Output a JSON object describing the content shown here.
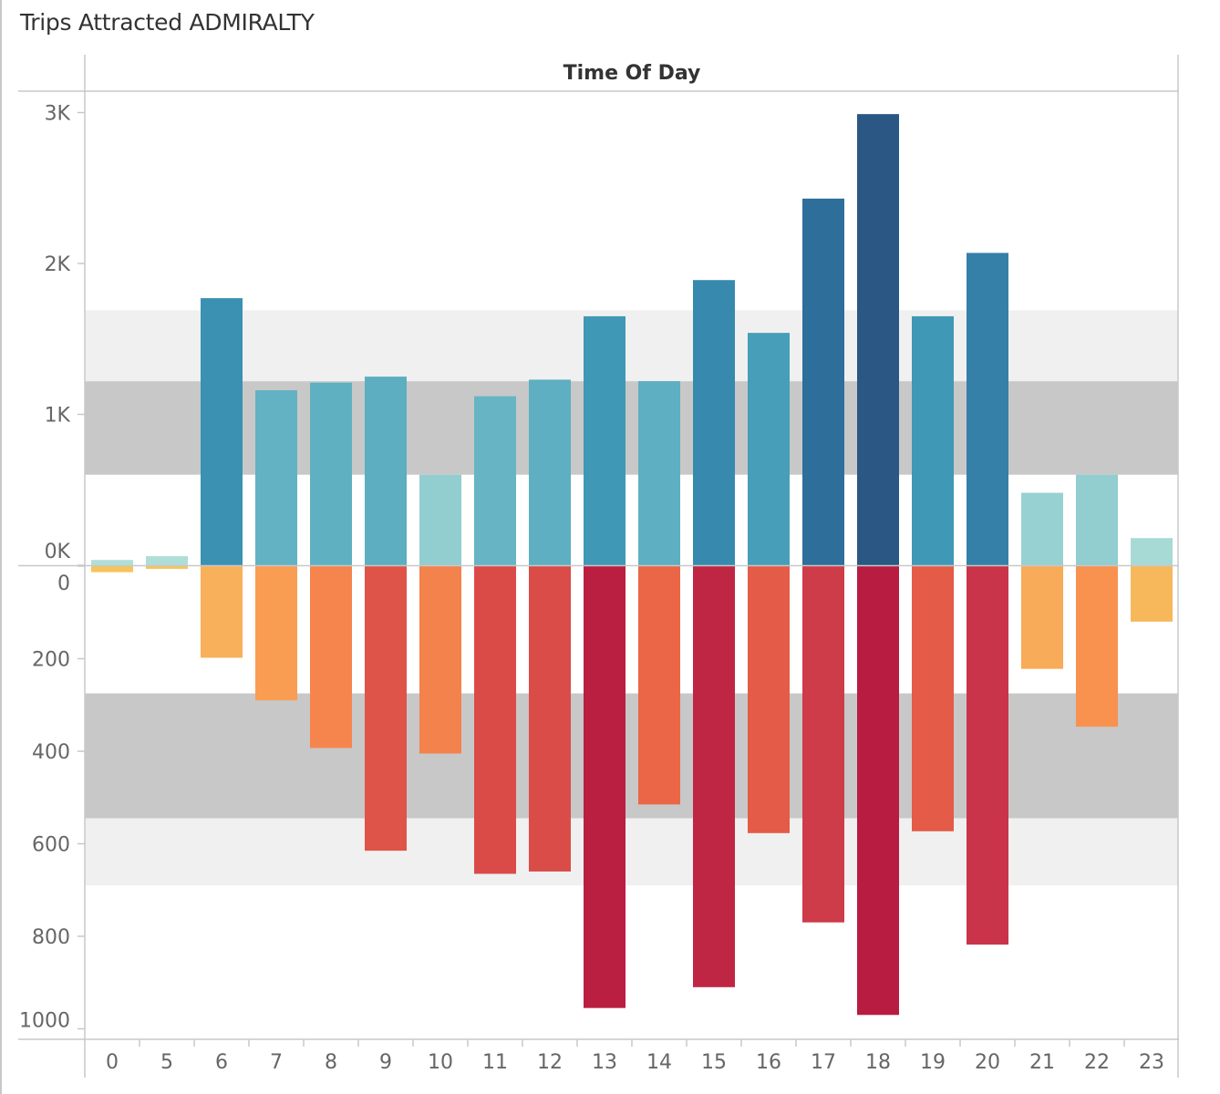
{
  "title": "Trips Attracted ADMIRALTY",
  "header": "Time Of Day",
  "chart_data": [
    {
      "type": "bar",
      "panel": "top",
      "categories": [
        "0",
        "5",
        "6",
        "7",
        "8",
        "9",
        "10",
        "11",
        "12",
        "13",
        "14",
        "15",
        "16",
        "17",
        "18",
        "19",
        "20",
        "21",
        "22",
        "23"
      ],
      "series": [
        {
          "values": [
            35,
            60,
            1770,
            1160,
            1210,
            1250,
            600,
            1120,
            1230,
            1650,
            1220,
            1890,
            1540,
            2430,
            2990,
            1650,
            2070,
            480,
            600,
            180
          ]
        }
      ],
      "ylim": [
        0,
        3000
      ],
      "yticks": [
        "3K",
        "2K",
        "1K",
        "0K"
      ],
      "yticks_values": [
        3000,
        2000,
        1000,
        0
      ],
      "bands": [
        [
          600,
          1220
        ],
        [
          1220,
          1690
        ]
      ],
      "colors": [
        "#a9dcd5",
        "#2a5783"
      ]
    },
    {
      "type": "bar",
      "panel": "bottom",
      "orientation": "downward",
      "categories": [
        "0",
        "5",
        "6",
        "7",
        "8",
        "9",
        "10",
        "11",
        "12",
        "13",
        "14",
        "15",
        "16",
        "17",
        "18",
        "19",
        "20",
        "21",
        "22",
        "23"
      ],
      "series": [
        {
          "values": [
            13,
            6,
            198,
            290,
            393,
            615,
            405,
            665,
            660,
            955,
            515,
            910,
            577,
            770,
            970,
            573,
            818,
            222,
            347,
            120
          ]
        }
      ],
      "ylim": [
        0,
        1000
      ],
      "yticks": [
        "0",
        "200",
        "400",
        "600",
        "800",
        "1000"
      ],
      "yticks_values": [
        0,
        200,
        400,
        600,
        800,
        1000
      ],
      "bands": [
        [
          275,
          545
        ],
        [
          545,
          690
        ]
      ],
      "colors": [
        "#f5c35a",
        "#b81c40"
      ]
    }
  ],
  "band_colors": {
    "dark": "#c8c8c8",
    "light": "#f0f0f0"
  }
}
